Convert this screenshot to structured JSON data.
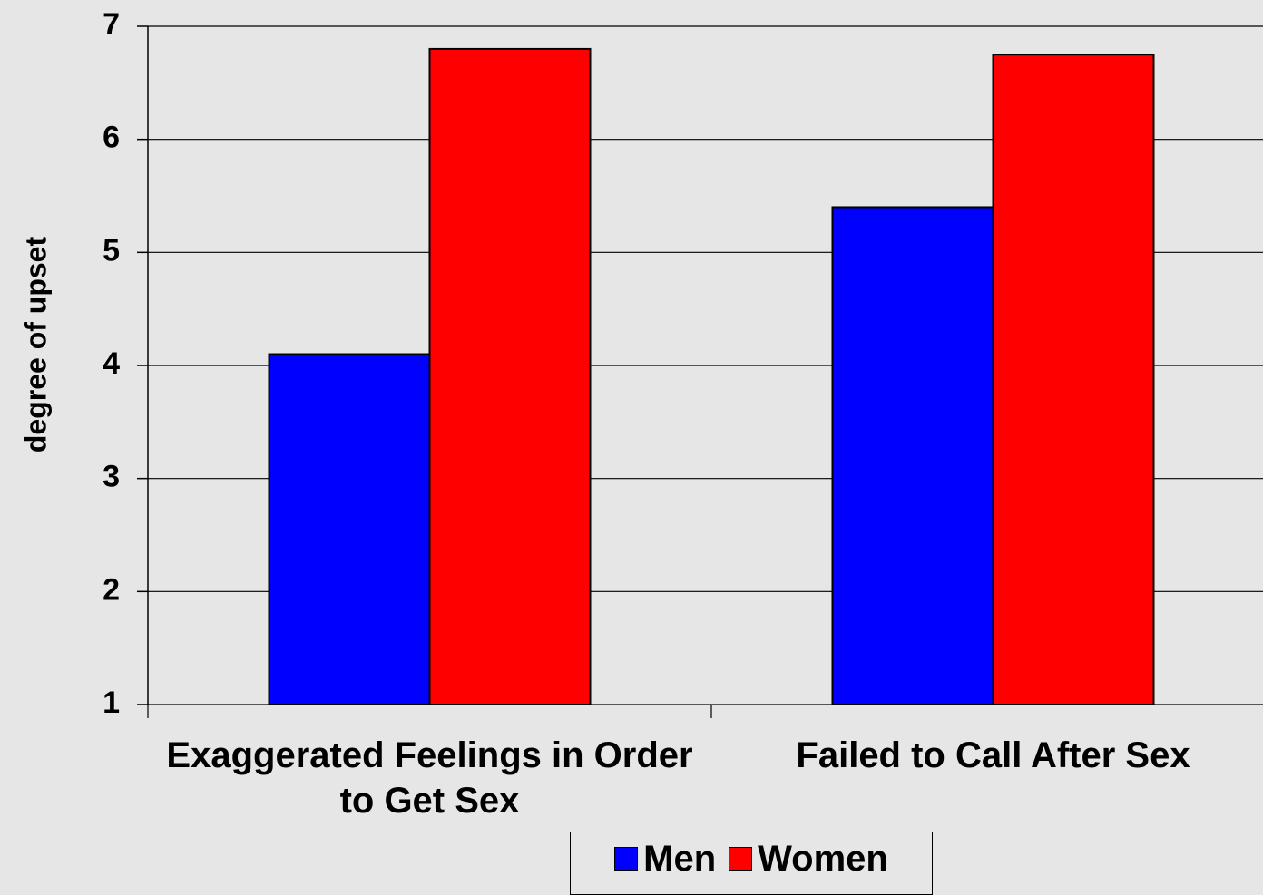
{
  "chart_data": {
    "type": "bar",
    "y_label": "degree of upset",
    "categories": [
      "Exaggerated Feelings in Order to Get Sex",
      "Failed to Call After Sex"
    ],
    "series": [
      {
        "name": "Men",
        "color": "#0000ff",
        "values": [
          4.1,
          5.4
        ]
      },
      {
        "name": "Women",
        "color": "#ff0000",
        "values": [
          6.8,
          6.75
        ]
      }
    ],
    "ylim": [
      1,
      7
    ],
    "yticks": [
      1,
      2,
      3,
      4,
      5,
      6,
      7
    ],
    "grid": true,
    "legend": "bottom"
  }
}
